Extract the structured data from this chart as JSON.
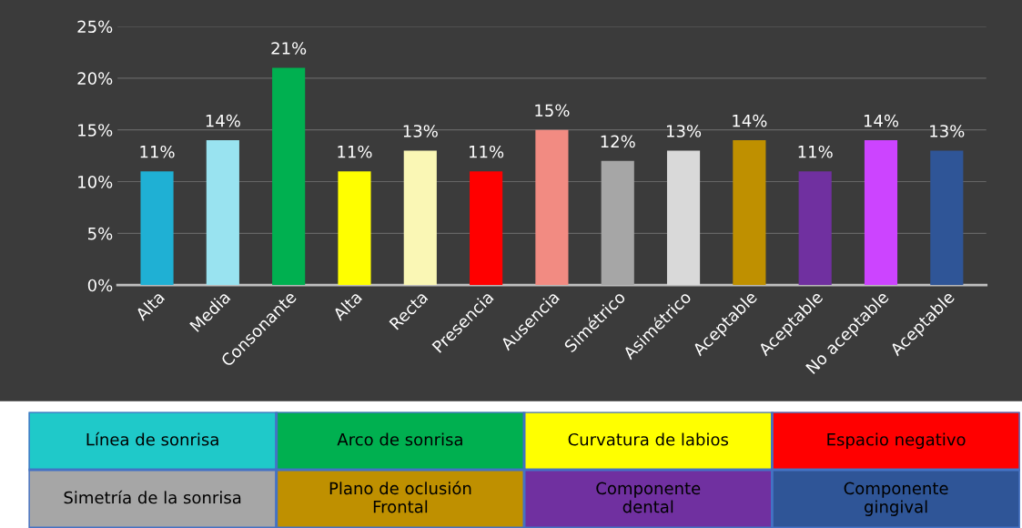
{
  "chart_data": [
    {
      "type": "bar",
      "categories": [
        "Alta",
        "Media",
        "Consonante",
        "Alta",
        "Recta",
        "Presencia",
        "Ausencia",
        "Simétrico",
        "Asimétrico",
        "Aceptable",
        "Aceptable",
        "No aceptable",
        "Aceptable"
      ],
      "values": [
        11,
        14,
        21,
        11,
        13,
        11,
        15,
        12,
        13,
        14,
        11,
        14,
        13
      ],
      "colors": [
        "#1fb0d4",
        "#99e3f0",
        "#00b050",
        "#ffff00",
        "#faf7b5",
        "#ff0000",
        "#f28b82",
        "#a6a6a6",
        "#d9d9d9",
        "#bf9000",
        "#7030a0",
        "#cc44ff",
        "#2f5597"
      ],
      "value_labels": [
        "11%",
        "14%",
        "21%",
        "11%",
        "13%",
        "11%",
        "15%",
        "12%",
        "13%",
        "14%",
        "11%",
        "14%",
        "13%"
      ],
      "ylim": [
        0,
        25
      ],
      "yticks": [
        {
          "value": 0,
          "label": "0%"
        },
        {
          "value": 5,
          "label": "5%"
        },
        {
          "value": 10,
          "label": "10%"
        },
        {
          "value": 15,
          "label": "15%"
        },
        {
          "value": 20,
          "label": "20%"
        },
        {
          "value": 25,
          "label": "25%"
        }
      ],
      "grid": "y",
      "legend": false
    },
    {
      "type": "other",
      "categories": [
        "Línea de sonrisa",
        "Arco de sonrisa",
        "Curvatura de labios",
        "Espacio negativo",
        "Simetría de la sonrisa",
        "Plano de oclusión\nFrontal",
        "Componente\ndental",
        "Componente\ngingival"
      ],
      "colors": [
        "#1fc9c9",
        "#00b050",
        "#ffff00",
        "#ff0000",
        "#a6a6a6",
        "#bf9000",
        "#7030a0",
        "#2f5597"
      ]
    }
  ]
}
